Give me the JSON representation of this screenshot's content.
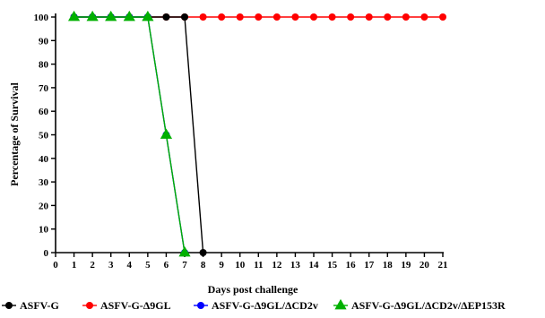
{
  "chart_data": {
    "type": "line",
    "xlabel": "Days post challenge",
    "ylabel": "Percentage of Survival",
    "xlim": [
      0,
      21
    ],
    "ylim": [
      0,
      100
    ],
    "xticks": [
      0,
      1,
      2,
      3,
      4,
      5,
      6,
      7,
      8,
      9,
      10,
      11,
      12,
      13,
      14,
      15,
      16,
      17,
      18,
      19,
      20,
      21
    ],
    "yticks": [
      0,
      10,
      20,
      30,
      40,
      50,
      60,
      70,
      80,
      90,
      100
    ],
    "grid": false,
    "legend_position": "bottom",
    "series": [
      {
        "name": "ASFV-G-Δ9GL",
        "color": "#ff0000",
        "marker": "circle",
        "x": [
          1,
          2,
          3,
          4,
          5,
          6,
          7,
          8,
          9,
          10,
          11,
          12,
          13,
          14,
          15,
          16,
          17,
          18,
          19,
          20,
          21
        ],
        "y": [
          100,
          100,
          100,
          100,
          100,
          100,
          100,
          100,
          100,
          100,
          100,
          100,
          100,
          100,
          100,
          100,
          100,
          100,
          100,
          100,
          100
        ]
      },
      {
        "name": "ASFV-G",
        "color": "#000000",
        "marker": "circle",
        "x": [
          1,
          2,
          3,
          4,
          5,
          6,
          7,
          8
        ],
        "y": [
          100,
          100,
          100,
          100,
          100,
          100,
          100,
          0
        ]
      },
      {
        "name": "ASFV-G-Δ9GL/ΔCD2v",
        "color": "#0000ff",
        "marker": "circle",
        "x": [
          1,
          2,
          3,
          4,
          5,
          6,
          7
        ],
        "y": [
          100,
          100,
          100,
          100,
          100,
          50,
          0
        ]
      },
      {
        "name": "ASFV-G-Δ9GL/ΔCD2v/ΔEP153R",
        "color": "#00b000",
        "marker": "triangle",
        "x": [
          1,
          2,
          3,
          4,
          5,
          6,
          7
        ],
        "y": [
          100,
          100,
          100,
          100,
          100,
          50,
          0
        ]
      }
    ],
    "legend_order": [
      "ASFV-G",
      "ASFV-G-Δ9GL",
      "ASFV-G-Δ9GL/ΔCD2v",
      "ASFV-G-Δ9GL/ΔCD2v/ΔEP153R"
    ]
  }
}
